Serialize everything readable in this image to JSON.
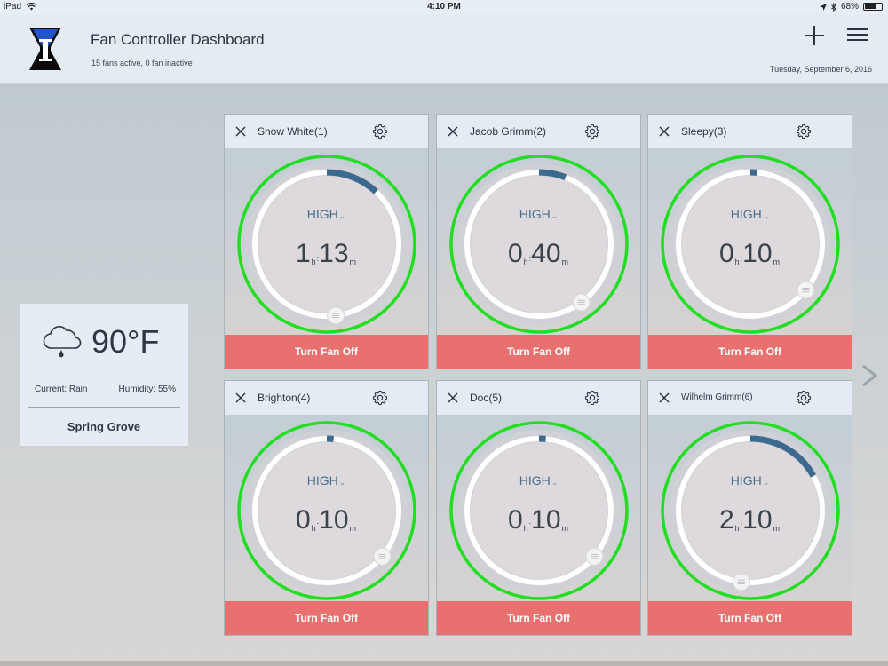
{
  "statusbar": {
    "device": "iPad",
    "time": "4:10 PM",
    "battery": "68%",
    "battery_level": 0.68
  },
  "header": {
    "title": "Fan Controller Dashboard",
    "subtitle": "15 fans active, 0 fan inactive",
    "date": "Tuesday, September 6, 2016",
    "icons": [
      "add-icon",
      "menu-icon"
    ]
  },
  "weather": {
    "temperature": "90°F",
    "condition": "Current: Rain",
    "humidity": "Humidity: 55%",
    "location": "Spring Grove",
    "icon": "rain-cloud-icon"
  },
  "fans": [
    {
      "name": "Snow White(1)",
      "mode": "HIGH",
      "hours": "1",
      "minutes": "13",
      "progress": 0.12,
      "knob": 0.48,
      "button": "Turn Fan Off"
    },
    {
      "name": "Jacob Grimm(2)",
      "mode": "HIGH",
      "hours": "0",
      "minutes": "40",
      "progress": 0.06,
      "knob": 0.4,
      "button": "Turn Fan Off"
    },
    {
      "name": "Sleepy(3)",
      "mode": "HIGH",
      "hours": "0",
      "minutes": "10",
      "progress": 0.015,
      "knob": 0.36,
      "button": "Turn Fan Off"
    },
    {
      "name": "Brighton(4)",
      "mode": "HIGH",
      "hours": "0",
      "minutes": "10",
      "progress": 0.015,
      "knob": 0.36,
      "button": "Turn Fan Off"
    },
    {
      "name": "Doc(5)",
      "mode": "HIGH",
      "hours": "0",
      "minutes": "10",
      "progress": 0.015,
      "knob": 0.36,
      "button": "Turn Fan Off"
    },
    {
      "name": "Wilhelm Grimm(6)",
      "mode": "HIGH",
      "hours": "2",
      "minutes": "10",
      "progress": 0.17,
      "knob": 0.52,
      "button": "Turn Fan Off"
    }
  ],
  "labels": {
    "hours_unit": "h",
    "minutes_unit": "m",
    "separator": ":"
  },
  "colors": {
    "ring_active": "#22dd22",
    "progress_arc": "#3b6a8e",
    "off_button": "#e8706f"
  }
}
